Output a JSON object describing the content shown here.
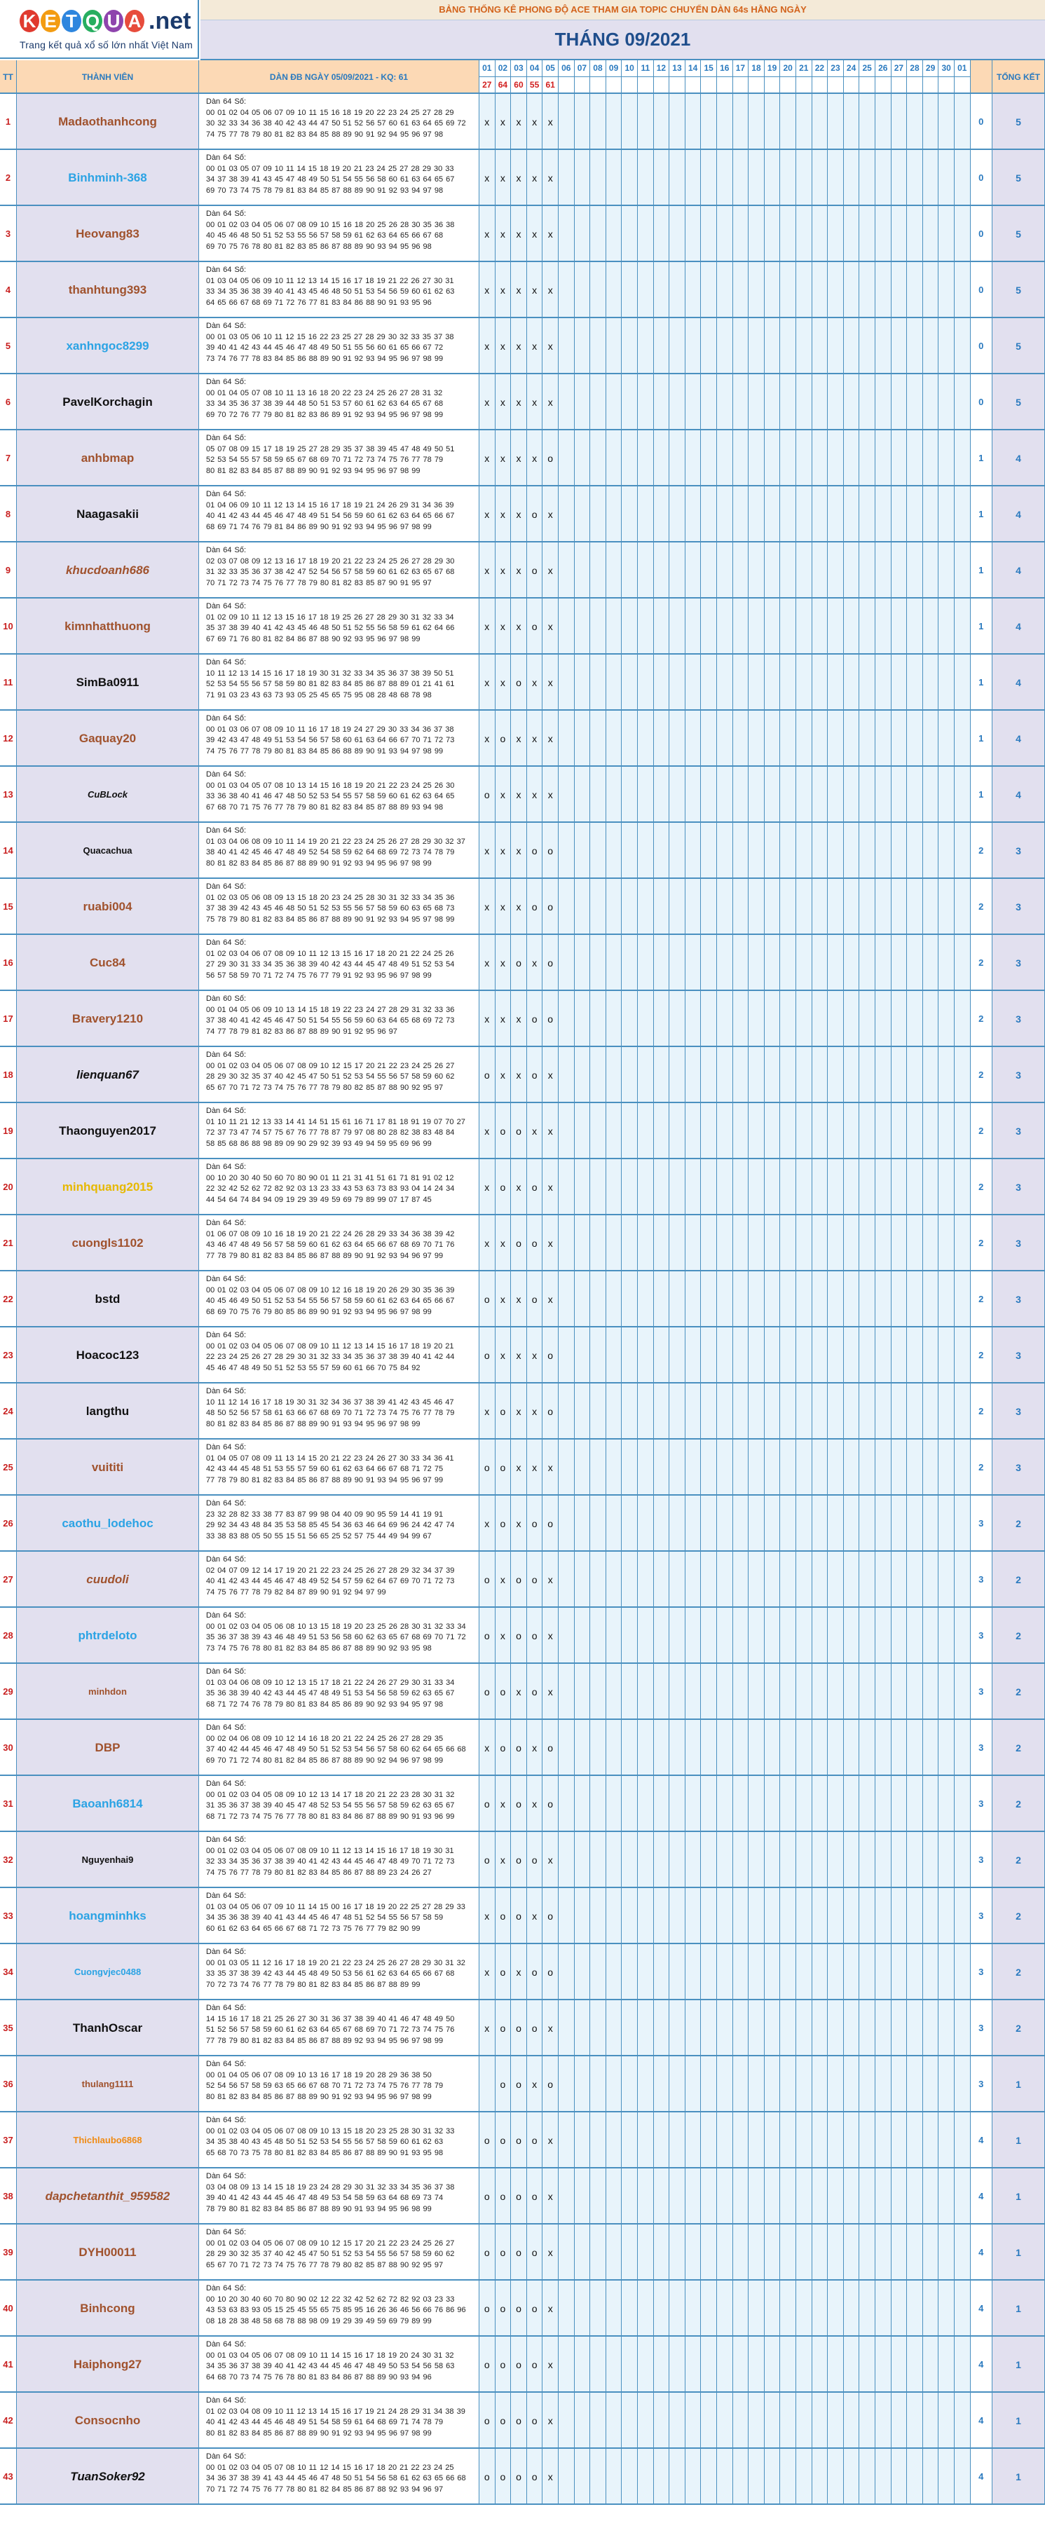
{
  "logo": {
    "letters": [
      "K",
      "E",
      "T",
      "Q",
      "U",
      "A"
    ],
    "letter_colors": [
      "#e03a2f",
      "#f39c12",
      "#2e86de",
      "#27ae60",
      "#8e44ad",
      "#e74c3c"
    ],
    "suffix": ".net",
    "tagline": "Trang kết quả xổ số lớn nhất Việt Nam"
  },
  "banner": "BẢNG THỐNG KÊ PHONG ĐỘ ACE THAM GIA TOPIC CHUYỂN DÀN 64s HẰNG NGÀY",
  "month_title": "THÁNG 09/2021",
  "columns": {
    "tt": "TT",
    "member": "THÀNH VIÊN",
    "dan": "DÀN ĐB NGÀY 05/09/2021 - KQ: 61",
    "total": "TỔNG KẾT",
    "days": [
      "01",
      "02",
      "03",
      "04",
      "05",
      "06",
      "07",
      "08",
      "09",
      "10",
      "11",
      "12",
      "13",
      "14",
      "15",
      "16",
      "17",
      "18",
      "19",
      "20",
      "21",
      "22",
      "23",
      "24",
      "25",
      "26",
      "27",
      "28",
      "29",
      "30",
      "01"
    ],
    "results": [
      "27",
      "64",
      "60",
      "55",
      "61"
    ]
  },
  "rows": [
    {
      "tt": "1",
      "name": "Madaothanhcong",
      "color": "brown",
      "nums": "Dàn 64 Số:\n00 01 02 04 05 06 07 09 10 11 15 16 18 19 20 22 23 24 25 27 28 29\n30 32 33 34 36 38 40 42 43 44 47 50 51 52 56 57 60 61 63 64 65 69 72\n74 75 77 78 79 80 81 82 83 84 85 88 89 90 91 92 94 95 96 97 98",
      "marks": [
        "x",
        "x",
        "x",
        "x",
        "x"
      ],
      "s1": "0",
      "s2": "5"
    },
    {
      "tt": "2",
      "name": "Binhminh-368",
      "color": "blue",
      "nums": "Dàn 64 Số:\n00 01 03 05 07 09 10 11 14 15 18 19 20 21 23 24 25 27 28 29 30 33\n34 37 38 39 41 43 45 47 48 49 50 51 54 55 56 58 60 61 63 64 65 67\n69 70 73 74 75 78 79 81 83 84 85 87 88 89 90 91 92 93 94 97 98",
      "marks": [
        "x",
        "x",
        "x",
        "x",
        "x"
      ],
      "s1": "0",
      "s2": "5"
    },
    {
      "tt": "3",
      "name": "Heovang83",
      "color": "brown",
      "nums": "Dàn 64 Số:\n00 01 02 03 04 05 06 07 08 09 10 15 16 18 20 25 26 28 30 35 36 38\n40 45 46 48 50 51 52 53 55 56 57 58 59 61 62 63 64 65 66 67 68\n69 70 75 76 78 80 81 82 83 85 86 87 88 89 90 93 94 95 96 98",
      "marks": [
        "x",
        "x",
        "x",
        "x",
        "x"
      ],
      "s1": "0",
      "s2": "5"
    },
    {
      "tt": "4",
      "name": "thanhtung393",
      "color": "brown",
      "nums": "Dàn 64 Số:\n01 03 04 05 06 09 10 11 12 13 14 15 16 17 18 19 21 22 26 27 30 31\n33 34 35 36 38 39 40 41 43 45 46 48 50 51 53 54 56 59 60 61 62 63\n64 65 66 67 68 69 71 72 76 77 81 83 84 86 88 90 91 93 95 96",
      "marks": [
        "x",
        "x",
        "x",
        "x",
        "x"
      ],
      "s1": "0",
      "s2": "5"
    },
    {
      "tt": "5",
      "name": "xanhngoc8299",
      "color": "blue",
      "nums": "Dàn 64 Số:\n00 01 03 05 06 10 11 12 15 16 22 23 25 27 28 29 30 32 33 35 37 38\n39 40 41 42 43 44 45 46 47 48 49 50 51 55 56 60 61 65 66 67 72\n73 74 76 77 78 83 84 85 86 88 89 90 91 92 93 94 95 96 97 98 99",
      "marks": [
        "x",
        "x",
        "x",
        "x",
        "x"
      ],
      "s1": "0",
      "s2": "5"
    },
    {
      "tt": "6",
      "name": "PavelKorchagin",
      "color": "black",
      "nums": "Dàn 64 Số:\n00 01 04 05 07 08 10 11 13 16 18 20 22 23 24 25 26 27 28 31 32\n33 34 35 36 37 38 39 44 48 50 51 53 57 60 61 62 63 64 65 67 68\n69 70 72 76 77 79 80 81 82 83 86 89 91 92 93 94 95 96 97 98 99",
      "marks": [
        "x",
        "x",
        "x",
        "x",
        "x"
      ],
      "s1": "0",
      "s2": "5"
    },
    {
      "tt": "7",
      "name": "anhbmap",
      "color": "brown",
      "nums": "Dàn 64 Số:\n05 07 08 09 15 17 18 19 25 27 28 29 35 37 38 39 45 47 48 49 50 51\n52 53 54 55 57 58 59 65 67 68 69 70 71 72 73 74 75 76 77 78 79\n80 81 82 83 84 85 87 88 89 90 91 92 93 94 95 96 97 98 99",
      "marks": [
        "x",
        "x",
        "x",
        "x",
        "o"
      ],
      "s1": "1",
      "s2": "4"
    },
    {
      "tt": "8",
      "name": "Naagasakii",
      "color": "black",
      "nums": "Dàn 64 Số:\n01 04 06 09 10 11 12 13 14 15 16 17 18 19 21 24 26 29 31 34 36 39\n40 41 42 43 44 45 46 47 48 49 51 54 56 59 60 61 62 63 64 65 66 67\n68 69 71 74 76 79 81 84 86 89 90 91 92 93 94 95 96 97 98 99",
      "marks": [
        "x",
        "x",
        "x",
        "o",
        "x"
      ],
      "s1": "1",
      "s2": "4"
    },
    {
      "tt": "9",
      "name": "khucdoanh686",
      "color": "brown",
      "italic": true,
      "nums": "Dàn 64 Số:\n02 03 07 08 09 12 13 16 17 18 19 20 21 22 23 24 25 26 27 28 29 30\n31 32 33 35 36 37 38 42 47 52 54 56 57 58 59 60 61 62 63 65 67 68\n70 71 72 73 74 75 76 77 78 79 80 81 82 83 85 87 90 91 95 97",
      "marks": [
        "x",
        "x",
        "x",
        "o",
        "x"
      ],
      "s1": "1",
      "s2": "4"
    },
    {
      "tt": "10",
      "name": "kimnhatthuong",
      "color": "brown",
      "nums": "Dàn 64 Số:\n01 02 09 10 11 12 13 15 16 17 18 19 25 26 27 28 29 30 31 32 33 34\n35 37 38 39 40 41 42 43 45 46 48 50 51 52 55 56 58 59 61 62 64 66\n67 69 71 76 80 81 82 84 86 87 88 90 92 93 95 96 97 98 99",
      "marks": [
        "x",
        "x",
        "x",
        "o",
        "x"
      ],
      "s1": "1",
      "s2": "4"
    },
    {
      "tt": "11",
      "name": "SimBa0911",
      "color": "black",
      "nums": "Dàn 64 Số:\n10 11 12 13 14 15 16 17 18 19 30 31 32 33 34 35 36 37 38 39 50 51\n52 53 54 55 56 57 58 59 80 81 82 83 84 85 86 87 88 89 01 21 41 61\n71 91 03 23 43 63 73 93 05 25 45 65 75 95 08 28 48 68 78 98",
      "marks": [
        "x",
        "x",
        "o",
        "x",
        "x"
      ],
      "s1": "1",
      "s2": "4"
    },
    {
      "tt": "12",
      "name": "Gaquay20",
      "color": "brown",
      "nums": "Dàn 64 Số:\n00 01 03 06 07 08 09 10 11 16 17 18 19 24 27 29 30 33 34 36 37 38\n39 42 43 47 48 49 51 53 54 56 57 58 60 61 63 64 66 67 70 71 72 73\n74 75 76 77 78 79 80 81 83 84 85 86 88 89 90 91 93 94 97 98 99",
      "marks": [
        "x",
        "o",
        "x",
        "x",
        "x"
      ],
      "s1": "1",
      "s2": "4"
    },
    {
      "tt": "13",
      "name": "CuBLock",
      "color": "black",
      "italic": true,
      "small": true,
      "nums": "Dàn 64 Số:\n00 01 03 04 05 07 08 10 13 14 15 16 18 19 20 21 22 23 24 25 26 30\n33 36 38 40 41 46 47 48 50 52 53 54 55 57 58 59 60 61 62 63 64 65\n67 68 70 71 75 76 77 78 79 80 81 82 83 84 85 87 88 89 93 94 98",
      "marks": [
        "o",
        "x",
        "x",
        "x",
        "x"
      ],
      "s1": "1",
      "s2": "4"
    },
    {
      "tt": "14",
      "name": "Quacachua",
      "color": "black",
      "small": true,
      "nums": "Dàn 64 Số:\n01 03 04 06 08 09 10 11 14 19 20 21 22 23 24 25 26 27 28 29 30 32 37\n38 40 41 42 45 46 47 48 49 52 54 58 59 62 64 68 69 72 73 74 78 79\n80 81 82 83 84 85 86 87 88 89 90 91 92 93 94 95 96 97 98 99",
      "marks": [
        "x",
        "x",
        "x",
        "o",
        "o"
      ],
      "s1": "2",
      "s2": "3"
    },
    {
      "tt": "15",
      "name": "ruabi004",
      "color": "brown",
      "nums": "Dàn 64 Số:\n01 02 03 05 06 08 09 13 15 18 20 23 24 25 28 30 31 32 33 34 35 36\n37 38 39 42 43 45 46 48 50 51 52 53 55 56 57 58 59 60 63 65 68 73\n75 78 79 80 81 82 83 84 85 86 87 88 89 90 91 92 93 94 95 97 98 99",
      "marks": [
        "x",
        "x",
        "x",
        "o",
        "o"
      ],
      "s1": "2",
      "s2": "3"
    },
    {
      "tt": "16",
      "name": "Cuc84",
      "color": "brown",
      "nums": "Dàn 64 Số:\n01 02 03 04 06 07 08 09 10 11 12 13 15 16 17 18 20 21 22 24 25 26\n27 29 30 31 33 34 35 36 38 39 40 42 43 44 45 47 48 49 51 52 53 54\n56 57 58 59 70 71 72 74 75 76 77 79 91 92 93 95 96 97 98 99",
      "marks": [
        "x",
        "x",
        "o",
        "x",
        "o"
      ],
      "s1": "2",
      "s2": "3"
    },
    {
      "tt": "17",
      "name": "Bravery1210",
      "color": "brown",
      "nums": "Dàn 60 Số:\n00 01 04 05 06 09 10 13 14 15 18 19 22 23 24 27 28 29 31 32 33 36\n37 38 40 41 42 45 46 47 50 51 54 55 56 59 60 63 64 65 68 69 72 73\n74 77 78 79 81 82 83 86 87 88 89 90 91 92 95 96 97",
      "marks": [
        "x",
        "x",
        "x",
        "o",
        "o"
      ],
      "s1": "2",
      "s2": "3"
    },
    {
      "tt": "18",
      "name": "lienquan67",
      "color": "black",
      "italic": true,
      "nums": "Dàn 64 Số:\n00 01 02 03 04 05 06 07 08 09 10 12 15 17 20 21 22 23 24 25 26 27\n28 29 30 32 35 37 40 42 45 47 50 51 52 53 54 55 56 57 58 59 60 62\n65 67 70 71 72 73 74 75 76 77 78 79 80 82 85 87 88 90 92 95 97",
      "marks": [
        "o",
        "x",
        "x",
        "o",
        "x"
      ],
      "s1": "2",
      "s2": "3"
    },
    {
      "tt": "19",
      "name": "Thaonguyen2017",
      "color": "black",
      "nums": "Dàn 64 Số:\n01 10 11 21 12 13 33 14 41 14 51 15 61 16 71 17 81 18 91 19 07 70 27\n72 37 73 47 74 57 75 67 76 77 78 87 79 97 08 80 28 82 38 83 48 84\n58 85 68 86 88 98 89 09 90 29 92 39 93 49 94 59 95 69 96 99",
      "marks": [
        "x",
        "o",
        "o",
        "x",
        "x"
      ],
      "s1": "2",
      "s2": "3"
    },
    {
      "tt": "20",
      "name": "minhquang2015",
      "color": "gold",
      "nums": "Dàn 64 Số:\n00 10 20 30 40 50 60 70 80 90 01 11 21 31 41 51 61 71 81 91 02 12\n22 32 42 52 62 72 82 92 03 13 23 33 43 53 63 73 83 93 04 14 24 34\n44 54 64 74 84 94 09 19 29 39 49 59 69 79 89 99 07 17 87 45",
      "marks": [
        "x",
        "o",
        "x",
        "o",
        "x"
      ],
      "s1": "2",
      "s2": "3"
    },
    {
      "tt": "21",
      "name": "cuongls1102",
      "color": "brown",
      "nums": "Dàn 64 Số:\n01 06 07 08 09 10 16 18 19 20 21 22 24 26 28 29 33 34 36 38 39 42\n43 46 47 48 49 56 57 58 59 60 61 62 63 64 65 66 67 68 69 70 71 76\n77 78 79 80 81 82 83 84 85 86 87 88 89 90 91 92 93 94 96 97 99",
      "marks": [
        "x",
        "x",
        "o",
        "o",
        "x"
      ],
      "s1": "2",
      "s2": "3"
    },
    {
      "tt": "22",
      "name": "bstd",
      "color": "black",
      "nums": "Dàn 64 Số:\n00 01 02 03 04 05 06 07 08 09 10 12 16 18 19 20 26 29 30 35 36 39\n40 45 46 49 50 51 52 53 54 55 56 57 58 59 60 61 62 63 64 65 66 67\n68 69 70 75 76 79 80 85 86 89 90 91 92 93 94 95 96 97 98 99",
      "marks": [
        "o",
        "x",
        "x",
        "o",
        "x"
      ],
      "s1": "2",
      "s2": "3"
    },
    {
      "tt": "23",
      "name": "Hoacoc123",
      "color": "black",
      "nums": "Dàn 64 Số:\n00 01 02 03 04 05 06 07 08 09 10 11 12 13 14 15 16 17 18 19 20 21\n22 23 24 25 26 27 28 29 30 31 32 33 34 35 36 37 38 39 40 41 42 44\n45 46 47 48 49 50 51 52 53 55 57 59 60 61 66 70 75 84 92",
      "marks": [
        "o",
        "x",
        "x",
        "x",
        "o"
      ],
      "s1": "2",
      "s2": "3"
    },
    {
      "tt": "24",
      "name": "langthu",
      "color": "black",
      "nums": "Dàn 64 Số:\n10 11 12 14 16 17 18 19 30 31 32 34 36 37 38 39 41 42 43 45 46 47\n48 50 52 56 57 58 61 63 66 67 68 69 70 71 72 73 74 75 76 77 78 79\n80 81 82 83 84 85 86 87 88 89 90 91 93 94 95 96 97 98 99",
      "marks": [
        "x",
        "o",
        "x",
        "x",
        "o"
      ],
      "s1": "2",
      "s2": "3"
    },
    {
      "tt": "25",
      "name": "vuititi",
      "color": "brown",
      "nums": "Dàn 64 Số:\n01 04 05 07 08 09 11 13 14 15 20 21 22 23 24 26 27 30 33 34 36 41\n42 43 44 45 48 51 53 55 57 59 60 61 62 63 64 66 67 68 71 72 75\n77 78 79 80 81 82 83 84 85 86 87 88 89 90 91 93 94 95 96 97 99",
      "marks": [
        "o",
        "o",
        "x",
        "x",
        "x"
      ],
      "s1": "2",
      "s2": "3"
    },
    {
      "tt": "26",
      "name": "caothu_lodehoc",
      "color": "blue",
      "nums": "Dàn 64 Số:\n23 32 28 82 33 38 77 83 87 99 98 04 40 09 90 95 59 14 41 19 91\n29 92 34 43 48 84 35 53 58 85 45 54 36 63 46 64 69 96 24 42 47 74\n33 38 83 88 05 50 55 15 51 56 65 25 52 57 75 44 49 94 99 67",
      "marks": [
        "x",
        "o",
        "x",
        "o",
        "o"
      ],
      "s1": "3",
      "s2": "2"
    },
    {
      "tt": "27",
      "name": "cuudoli",
      "color": "brown",
      "italic": true,
      "nums": "Dàn 64 Số:\n02 04 07 09 12 14 17 19 20 21 22 23 24 25 26 27 28 29 32 34 37 39\n40 41 42 43 44 45 46 47 48 49 52 54 57 59 62 64 67 69 70 71 72 73\n74 75 76 77 78 79 82 84 87 89 90 91 92 94 97 99",
      "marks": [
        "o",
        "x",
        "o",
        "o",
        "x"
      ],
      "s1": "3",
      "s2": "2"
    },
    {
      "tt": "28",
      "name": "phtrdeloto",
      "color": "blue",
      "nums": "Dàn 64 Số:\n00 01 02 03 04 05 06 08 10 13 15 18 19 20 23 25 26 28 30 31 32 33 34\n35 36 37 38 39 43 46 48 49 51 53 56 58 60 62 63 65 67 68 69 70 71 72\n73 74 75 76 78 80 81 82 83 84 85 86 87 88 89 90 92 93 95 98",
      "marks": [
        "o",
        "x",
        "o",
        "o",
        "x"
      ],
      "s1": "3",
      "s2": "2"
    },
    {
      "tt": "29",
      "name": "minhdon",
      "color": "brown",
      "small": true,
      "nums": "Dàn 64 Số:\n01 03 04 06 08 09 10 12 13 15 17 18 21 22 24 26 27 29 30 31 33 34\n35 36 38 39 40 42 43 44 45 47 48 49 51 53 54 56 58 59 62 63 65 67\n68 71 72 74 76 78 79 80 81 83 84 85 86 89 90 92 93 94 95 97 98",
      "marks": [
        "o",
        "o",
        "x",
        "o",
        "x"
      ],
      "s1": "3",
      "s2": "2"
    },
    {
      "tt": "30",
      "name": "DBP",
      "color": "brown",
      "nums": "Dàn 64 Số:\n00 02 04 06 08 09 10 12 14 16 18 20 21 22 24 25 26 27 28 29 35\n37 40 42 44 45 46 47 48 49 50 51 52 53 54 56 57 58 60 62 64 65 66 68\n69 70 71 72 74 80 81 82 84 85 86 87 88 89 90 92 94 96 97 98 99",
      "marks": [
        "x",
        "o",
        "o",
        "x",
        "o"
      ],
      "s1": "3",
      "s2": "2"
    },
    {
      "tt": "31",
      "name": "Baoanh6814",
      "color": "blue",
      "nums": "Dàn 64 Số:\n00 01 02 03 04 05 08 09 10 12 13 14 17 18 20 21 22 23 28 30 31 32\n31 35 36 37 38 39 40 45 47 48 52 53 54 55 56 57 58 59 62 63 65 67\n68 71 72 73 74 75 76 77 78 80 81 83 84 86 87 88 89 90 91 93 96 99",
      "marks": [
        "o",
        "x",
        "o",
        "x",
        "o"
      ],
      "s1": "3",
      "s2": "2"
    },
    {
      "tt": "32",
      "name": "Nguyenhai9",
      "color": "black",
      "small": true,
      "nums": "Dàn 64 Số:\n00 01 02 03 04 05 06 07 08 09 10 11 12 13 14 15 16 17 18 19 30 31\n32 33 34 35 36 37 38 39 40 41 42 43 44 45 46 47 48 49 70 71 72 73\n74 75 76 77 78 79 80 81 82 83 84 85 86 87 88 89 23 24 26 27",
      "marks": [
        "o",
        "x",
        "o",
        "o",
        "x"
      ],
      "s1": "3",
      "s2": "2"
    },
    {
      "tt": "33",
      "name": "hoangminhks",
      "color": "blue",
      "nums": "Dàn 64 Số:\n01 03 04 05 06 07 09 10 11 14 15 00 16 17 18 19 20 22 25 27 28 29 33\n34 35 36 38 39 40 41 43 44 45 46 47 48 51 52 54 55 56 57 58 59\n60 61 62 63 64 65 66 67 68 71 72 73 75 76 77 79 82 90 99",
      "marks": [
        "x",
        "o",
        "o",
        "x",
        "o"
      ],
      "s1": "3",
      "s2": "2"
    },
    {
      "tt": "34",
      "name": "Cuongvjec0488",
      "color": "blue",
      "small": true,
      "nums": "Dàn 64 Số:\n00 01 03 05 11 12 16 17 18 19 20 21 22 23 24 25 26 27 28 29 30 31 32\n33 35 37 38 39 42 43 44 45 48 49 50 53 56 61 62 63 64 65 66 67 68\n70 72 73 74 76 77 78 79 80 81 82 83 84 85 86 87 88 89 99",
      "marks": [
        "x",
        "o",
        "x",
        "o",
        "o"
      ],
      "s1": "3",
      "s2": "2"
    },
    {
      "tt": "35",
      "name": "ThanhOscar",
      "color": "black",
      "nums": "Dàn 64 Số:\n14 15 16 17 18 21 25 26 27 30 31 36 37 38 39 40 41 46 47 48 49 50\n51 52 56 57 58 59 60 61 62 63 64 65 67 68 69 70 71 72 73 74 75 76\n77 78 79 80 81 82 83 84 85 86 87 88 89 92 93 94 95 96 97 98 99",
      "marks": [
        "x",
        "o",
        "o",
        "o",
        "x"
      ],
      "s1": "3",
      "s2": "2"
    },
    {
      "tt": "36",
      "name": "thulang1111",
      "color": "brown",
      "small": true,
      "nums": "Dàn 64 Số:\n00 01 04 05 06 07 08 09 10 13 16 17 18 19 20 28 29 36 38 50\n52 54 56 57 58 59 63 65 66 67 68 70 71 72 73 74 75 76 77 78 79\n80 81 82 83 84 85 86 87 88 89 90 91 92 93 94 95 96 97 98 99",
      "marks": [
        "",
        "o",
        "o",
        "x",
        "o"
      ],
      "s1": "3",
      "s2": "1"
    },
    {
      "tt": "37",
      "name": "Thichlaubo6868",
      "color": "orange",
      "small": true,
      "nums": "Dàn 64 Số:\n00 01 02 03 04 05 06 07 08 09 10 13 15 18 20 23 25 28 30 31 32 33\n34 35 38 40 43 45 48 50 51 52 53 54 55 56 57 58 59 60 61 62 63\n65 68 70 73 75 78 80 81 82 83 84 85 86 87 88 89 90 91 93 95 98",
      "marks": [
        "o",
        "o",
        "o",
        "o",
        "x"
      ],
      "s1": "4",
      "s2": "1"
    },
    {
      "tt": "38",
      "name": "dapchetanthit_959582",
      "color": "brown",
      "italic": true,
      "nums": "Dàn 64 Số:\n03 04 08 09 13 14 15 18 19 23 24 28 29 30 31 32 33 34 35 36 37 38\n39 40 41 42 43 44 45 46 47 48 49 53 54 58 59 63 64 68 69 73 74\n78 79 80 81 82 83 84 85 86 87 88 89 90 91 93 94 95 96 98 99",
      "marks": [
        "o",
        "o",
        "o",
        "o",
        "x"
      ],
      "s1": "4",
      "s2": "1"
    },
    {
      "tt": "39",
      "name": "DYH00011",
      "color": "brown",
      "nums": "Dàn 64 Số:\n00 01 02 03 04 05 06 07 08 09 10 12 15 17 20 21 22 23 24 25 26 27\n28 29 30 32 35 37 40 42 45 47 50 51 52 53 54 55 56 57 58 59 60 62\n65 67 70 71 72 73 74 75 76 77 78 79 80 82 85 87 88 90 92 95 97",
      "marks": [
        "o",
        "o",
        "o",
        "o",
        "x"
      ],
      "s1": "4",
      "s2": "1"
    },
    {
      "tt": "40",
      "name": "Binhcong",
      "color": "brown",
      "nums": "Dàn 64 Số:\n00 10 20 30 40 60 70 80 90 02 12 22 32 42 52 62 72 82 92 03 23 33\n43 53 63 83 93 05 15 25 45 55 65 75 85 95 16 26 36 46 56 66 76 86 96\n08 18 28 38 48 58 68 78 88 98 09 19 29 39 49 59 69 79 89 99",
      "marks": [
        "o",
        "o",
        "o",
        "o",
        "x"
      ],
      "s1": "4",
      "s2": "1"
    },
    {
      "tt": "41",
      "name": "Haiphong27",
      "color": "brown",
      "nums": "Dàn 64 Số:\n00 01 03 04 05 06 07 08 09 10 11 14 15 16 17 18 19 20 24 30 31 32\n34 35 36 37 38 39 40 41 42 43 44 45 46 47 48 49 50 53 54 56 58 63\n64 68 70 73 74 75 76 78 80 81 83 84 86 87 88 89 90 93 94 96",
      "marks": [
        "o",
        "o",
        "o",
        "o",
        "x"
      ],
      "s1": "4",
      "s2": "1"
    },
    {
      "tt": "42",
      "name": "Consocnho",
      "color": "brown",
      "nums": "Dàn 64 Số:\n01 02 03 04 08 09 10 11 12 13 14 15 16 17 19 21 24 28 29 31 34 38 39\n40 41 42 43 44 45 46 48 49 51 54 58 59 61 64 68 69 71 74 78 79\n80 81 82 83 84 85 86 87 88 89 90 91 92 93 94 95 96 97 98 99",
      "marks": [
        "o",
        "o",
        "o",
        "o",
        "x"
      ],
      "s1": "4",
      "s2": "1"
    },
    {
      "tt": "43",
      "name": "TuanSoker92",
      "color": "black",
      "italic": true,
      "nums": "Dàn 64 Số:\n00 01 02 03 04 05 07 08 10 11 12 14 15 16 17 18 20 21 22 23 24 25\n34 36 37 38 39 41 43 44 45 46 47 48 50 51 54 56 58 61 62 63 65 66 68\n70 71 72 74 75 76 77 78 80 81 82 84 85 86 87 88 92 93 94 96 97",
      "marks": [
        "o",
        "o",
        "o",
        "o",
        "x"
      ],
      "s1": "4",
      "s2": "1"
    }
  ]
}
